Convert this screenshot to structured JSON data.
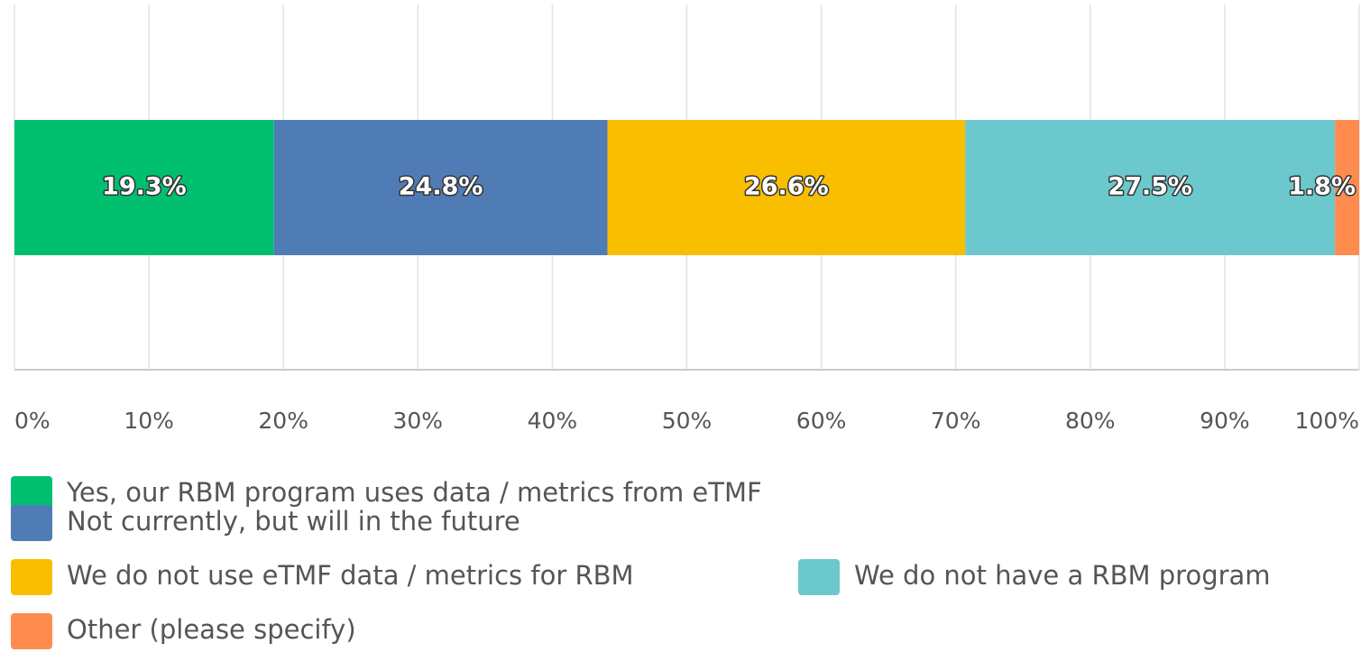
{
  "chart_data": {
    "type": "bar",
    "orientation": "horizontal",
    "stacked": true,
    "series": [
      {
        "name": "Yes, our RBM program uses data / metrics from eTMF",
        "color": "#00bf6f",
        "values": [
          19.3
        ],
        "value_labels": [
          "19.3%"
        ]
      },
      {
        "name": "Not currently, but will in the future",
        "color": "#507cb6",
        "values": [
          24.8
        ],
        "value_labels": [
          "24.8%"
        ]
      },
      {
        "name": "We do not use eTMF data / metrics for RBM",
        "color": "#f9be00",
        "values": [
          26.6
        ],
        "value_labels": [
          "26.6%"
        ]
      },
      {
        "name": "We do not have a RBM program",
        "color": "#6bc8cd",
        "values": [
          27.5
        ],
        "value_labels": [
          "27.5%"
        ]
      },
      {
        "name": "Other (please specify)",
        "color": "#ff8b4f",
        "values": [
          1.8
        ],
        "value_labels": [
          "1.8%"
        ]
      }
    ],
    "xlim": [
      0,
      100
    ],
    "xticks": [
      {
        "value": 0,
        "label": "0%"
      },
      {
        "value": 10,
        "label": "10%"
      },
      {
        "value": 20,
        "label": "20%"
      },
      {
        "value": 30,
        "label": "30%"
      },
      {
        "value": 40,
        "label": "40%"
      },
      {
        "value": 50,
        "label": "50%"
      },
      {
        "value": 60,
        "label": "60%"
      },
      {
        "value": 70,
        "label": "70%"
      },
      {
        "value": 80,
        "label": "80%"
      },
      {
        "value": 90,
        "label": "90%"
      },
      {
        "value": 100,
        "label": "100%"
      }
    ],
    "grid": true
  }
}
